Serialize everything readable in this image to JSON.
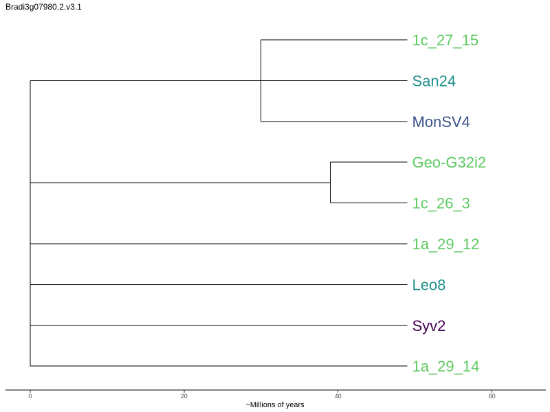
{
  "chart_data": {
    "type": "dendrogram",
    "title": "Bradi3g07980.2.v3.1",
    "xlabel": "~Millions of years",
    "xlim": [
      -3.2,
      67
    ],
    "x_ticks": [
      0,
      20,
      40,
      60
    ],
    "tips": [
      {
        "name": "1c_27_15",
        "color": "#5ec962"
      },
      {
        "name": "San24",
        "color": "#21918c"
      },
      {
        "name": "MonSV4",
        "color": "#3b528b"
      },
      {
        "name": "Geo-G32i2",
        "color": "#5ec962"
      },
      {
        "name": "1c_26_3",
        "color": "#5ec962"
      },
      {
        "name": "1a_29_12",
        "color": "#5ec962"
      },
      {
        "name": "Leo8",
        "color": "#21918c"
      },
      {
        "name": "Syv2",
        "color": "#440154"
      },
      {
        "name": "1a_29_14",
        "color": "#5ec962"
      }
    ],
    "tip_x": 49,
    "clades": [
      {
        "node_x": 30,
        "tips": [
          0,
          1,
          2
        ],
        "subclade": {
          "node_x": 30,
          "tips": [
            0,
            2
          ]
        }
      },
      {
        "node_x": 39,
        "tips": [
          3,
          4
        ]
      }
    ],
    "root_x": 0
  }
}
